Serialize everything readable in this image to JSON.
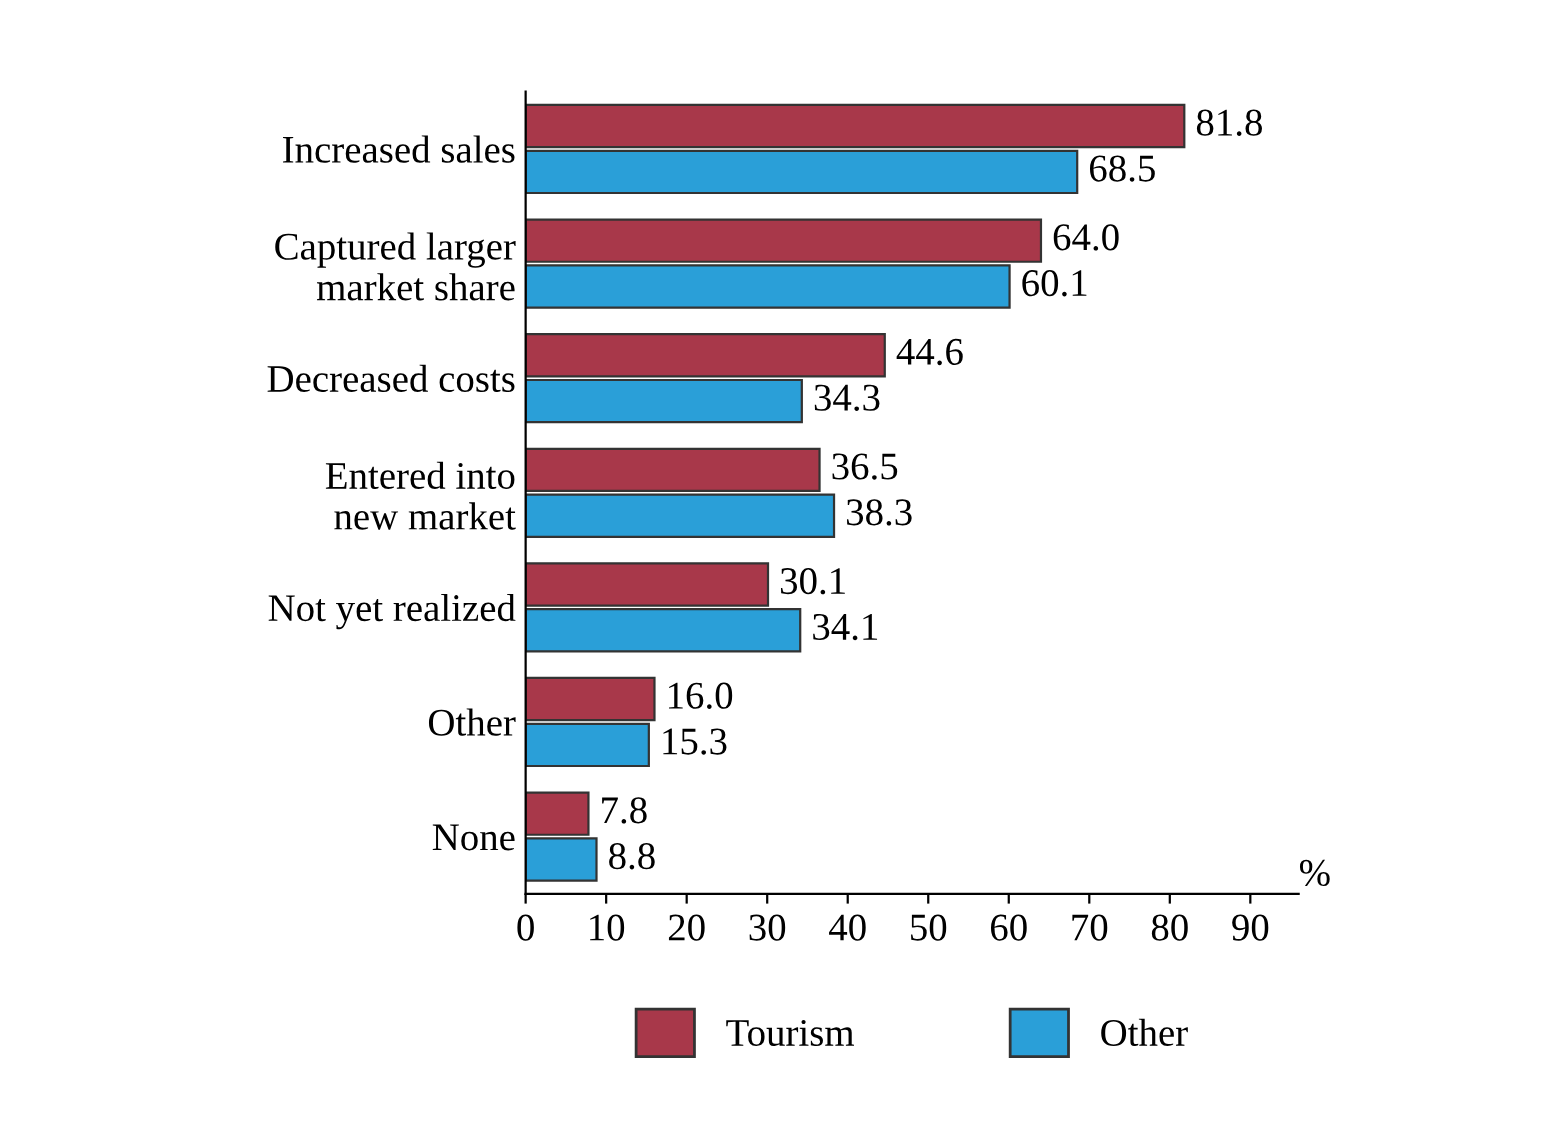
{
  "chart_data": {
    "type": "bar",
    "orientation": "horizontal",
    "categories": [
      "Increased sales",
      "Captured larger\nmarket share",
      "Decreased costs",
      "Entered into\nnew market",
      "Not yet realized",
      "Other",
      "None"
    ],
    "series": [
      {
        "name": "Tourism",
        "color": "#a8384a",
        "values": [
          81.8,
          64.0,
          44.6,
          36.5,
          30.1,
          16.0,
          7.8
        ],
        "value_labels": [
          "81.8",
          "64.0",
          "44.6",
          "36.5",
          "30.1",
          "16.0",
          "7.8"
        ]
      },
      {
        "name": "Other",
        "color": "#2a9fd8",
        "values": [
          68.5,
          60.1,
          34.3,
          38.3,
          34.1,
          15.3,
          8.8
        ],
        "value_labels": [
          "68.5",
          "60.1",
          "34.3",
          "38.3",
          "34.1",
          "15.3",
          "8.8"
        ]
      }
    ],
    "xlabel": "%",
    "xlim": [
      0,
      96
    ],
    "xticks": [
      0,
      10,
      20,
      30,
      40,
      50,
      60,
      70,
      80,
      90
    ],
    "grid": false,
    "legend": "bottom"
  }
}
